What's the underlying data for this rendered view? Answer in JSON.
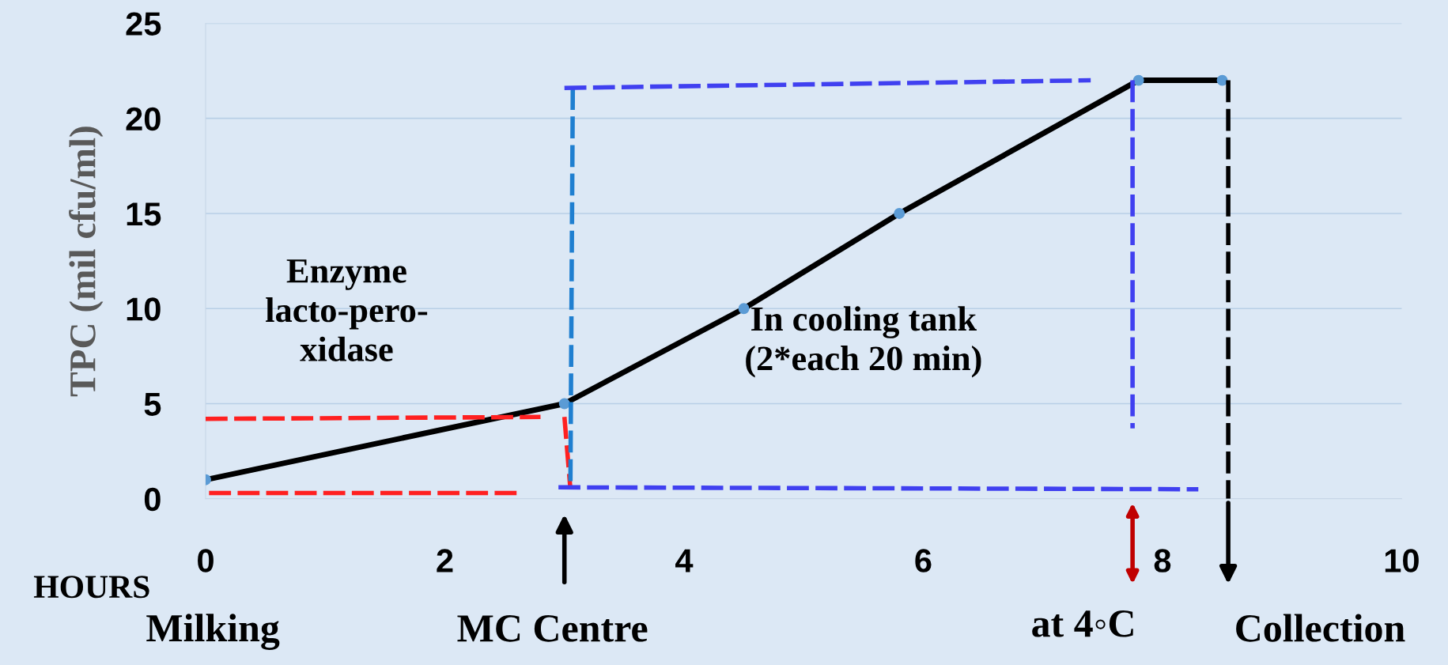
{
  "chart_data": {
    "type": "line",
    "xlabel": "HOURS",
    "ylabel": "TPC (mil cfu/ml)",
    "xlim": [
      0,
      10
    ],
    "ylim": [
      0,
      25
    ],
    "xticks": [
      0,
      2,
      4,
      6,
      8,
      10
    ],
    "yticks": [
      0,
      5,
      10,
      15,
      20,
      25
    ],
    "grid": "y",
    "series": [
      {
        "color": "#000000",
        "x": [
          0,
          3,
          4.5,
          5.8,
          7.8,
          8.5
        ],
        "values": [
          1,
          5,
          10,
          15,
          22,
          22
        ],
        "marker": "circle",
        "line_style": "solid"
      },
      {
        "color": "#ff2020",
        "x": [
          0,
          2.8,
          null,
          3,
          3.05,
          null,
          2.6,
          0
        ],
        "values": [
          4.2,
          4.3,
          null,
          4.3,
          0.5,
          null,
          0.3,
          0.3
        ],
        "marker": "none",
        "line_style": "dashed"
      },
      {
        "color": "#1f7fd0",
        "x": [
          3.07,
          3.05
        ],
        "values": [
          21.6,
          0.7
        ],
        "marker": "none",
        "line_style": "dashed"
      },
      {
        "color": "#4040f0",
        "x": [
          3,
          7.4,
          null,
          7.75,
          7.75,
          null,
          2.95,
          8.3
        ],
        "values": [
          21.6,
          22,
          null,
          22,
          3.7,
          null,
          0.6,
          0.5
        ],
        "marker": "none",
        "line_style": "dashed"
      },
      {
        "color": "#000000",
        "x": [
          8.55,
          8.55
        ],
        "values": [
          22,
          0
        ],
        "marker": "none",
        "line_style": "dashed"
      }
    ],
    "annotations": [
      "Enzyme\nlacto-pero-\nxidase",
      "In cooling tank\n(2*each 20 min)",
      "Milking",
      "MC Centre",
      "at 4◦C",
      "Collection"
    ]
  }
}
